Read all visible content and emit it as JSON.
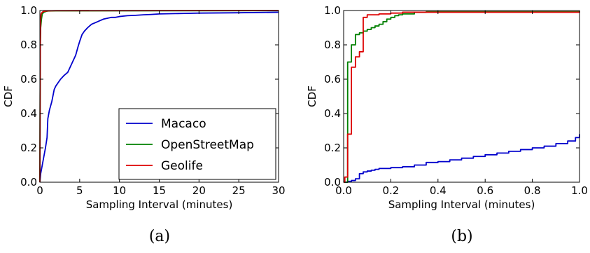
{
  "chart_data": [
    {
      "type": "line",
      "panel": "a",
      "caption": "(a)",
      "xlabel": "Sampling Interval (minutes)",
      "ylabel": "CDF",
      "xlim": [
        0,
        30
      ],
      "ylim": [
        0,
        1.0
      ],
      "xticks": [
        0,
        5,
        10,
        15,
        20,
        25,
        30
      ],
      "xtick_labels": [
        "0",
        "5",
        "10",
        "15",
        "20",
        "25",
        "30"
      ],
      "yticks": [
        0,
        0.2,
        0.4,
        0.6,
        0.8,
        1.0
      ],
      "ytick_labels": [
        "0.0",
        "0.2",
        "0.4",
        "0.6",
        "0.8",
        "1.0"
      ],
      "grid": false,
      "legend": {
        "position": "bottom-right"
      },
      "series": [
        {
          "name": "Macaco",
          "color": "#0000cc",
          "x": [
            0,
            0.1,
            0.3,
            0.5,
            0.7,
            0.9,
            1.0,
            1.2,
            1.5,
            1.8,
            2.0,
            2.3,
            2.6,
            3.0,
            3.5,
            4.0,
            4.5,
            4.8,
            5.0,
            5.3,
            5.6,
            6.0,
            6.5,
            7.0,
            7.5,
            8.0,
            8.5,
            9.0,
            9.5,
            10,
            11,
            12,
            13,
            14,
            15,
            17,
            20,
            25,
            30
          ],
          "y": [
            0.0,
            0.05,
            0.1,
            0.15,
            0.2,
            0.26,
            0.37,
            0.42,
            0.47,
            0.54,
            0.56,
            0.58,
            0.6,
            0.62,
            0.64,
            0.69,
            0.74,
            0.79,
            0.82,
            0.86,
            0.88,
            0.9,
            0.92,
            0.93,
            0.94,
            0.95,
            0.955,
            0.96,
            0.96,
            0.965,
            0.97,
            0.972,
            0.975,
            0.977,
            0.98,
            0.982,
            0.985,
            0.987,
            0.99
          ]
        },
        {
          "name": "OpenStreetMap",
          "color": "#008000",
          "x": [
            0,
            0.05,
            0.1,
            0.2,
            0.3,
            0.5,
            0.8,
            1.0,
            2.0,
            30
          ],
          "y": [
            0.0,
            0.8,
            0.9,
            0.95,
            0.98,
            0.99,
            0.995,
            0.997,
            0.998,
            0.999
          ]
        },
        {
          "name": "Geolife",
          "color": "#dd0000",
          "x": [
            0,
            0.03,
            0.06,
            0.1,
            0.15,
            0.3,
            0.5,
            1.0,
            2.0,
            30
          ],
          "y": [
            0.0,
            0.5,
            0.85,
            0.95,
            0.98,
            0.99,
            0.995,
            0.998,
            0.999,
            1.0
          ]
        }
      ]
    },
    {
      "type": "line",
      "panel": "b",
      "caption": "(b)",
      "xlabel": "Sampling Interval (minutes)",
      "ylabel": "CDF",
      "xlim": [
        0,
        1.0
      ],
      "ylim": [
        0,
        1.0
      ],
      "xticks": [
        0,
        0.2,
        0.4,
        0.6,
        0.8,
        1.0
      ],
      "xtick_labels": [
        "0.0",
        "0.2",
        "0.4",
        "0.6",
        "0.8",
        "1.0"
      ],
      "yticks": [
        0,
        0.2,
        0.4,
        0.6,
        0.8,
        1.0
      ],
      "ytick_labels": [
        "0.0",
        "0.2",
        "0.4",
        "0.6",
        "0.8",
        "1.0"
      ],
      "grid": false,
      "series": [
        {
          "name": "Macaco",
          "color": "#0000cc",
          "step": true,
          "x": [
            0,
            0.017,
            0.033,
            0.05,
            0.067,
            0.083,
            0.1,
            0.117,
            0.133,
            0.15,
            0.2,
            0.25,
            0.3,
            0.35,
            0.4,
            0.45,
            0.5,
            0.55,
            0.6,
            0.65,
            0.7,
            0.75,
            0.8,
            0.85,
            0.9,
            0.95,
            0.983,
            1.0
          ],
          "y": [
            0.0,
            0.005,
            0.01,
            0.02,
            0.05,
            0.06,
            0.065,
            0.07,
            0.075,
            0.08,
            0.085,
            0.09,
            0.1,
            0.115,
            0.12,
            0.13,
            0.14,
            0.15,
            0.16,
            0.17,
            0.18,
            0.19,
            0.2,
            0.21,
            0.225,
            0.24,
            0.26,
            0.28
          ]
        },
        {
          "name": "OpenStreetMap",
          "color": "#008000",
          "step": true,
          "x": [
            0,
            0.017,
            0.033,
            0.05,
            0.067,
            0.083,
            0.1,
            0.117,
            0.133,
            0.15,
            0.167,
            0.183,
            0.2,
            0.217,
            0.233,
            0.25,
            0.3,
            0.35,
            1.0
          ],
          "y": [
            0.0,
            0.7,
            0.8,
            0.86,
            0.87,
            0.88,
            0.89,
            0.9,
            0.91,
            0.92,
            0.935,
            0.95,
            0.96,
            0.97,
            0.975,
            0.98,
            0.99,
            0.993,
            0.995
          ]
        },
        {
          "name": "Geolife",
          "color": "#dd0000",
          "step": true,
          "x": [
            0,
            0.005,
            0.017,
            0.033,
            0.05,
            0.067,
            0.083,
            0.1,
            0.15,
            0.2,
            0.25,
            0.3,
            1.0
          ],
          "y": [
            0.0,
            0.03,
            0.28,
            0.67,
            0.73,
            0.76,
            0.96,
            0.975,
            0.98,
            0.985,
            0.99,
            0.99,
            0.995
          ]
        }
      ]
    }
  ]
}
